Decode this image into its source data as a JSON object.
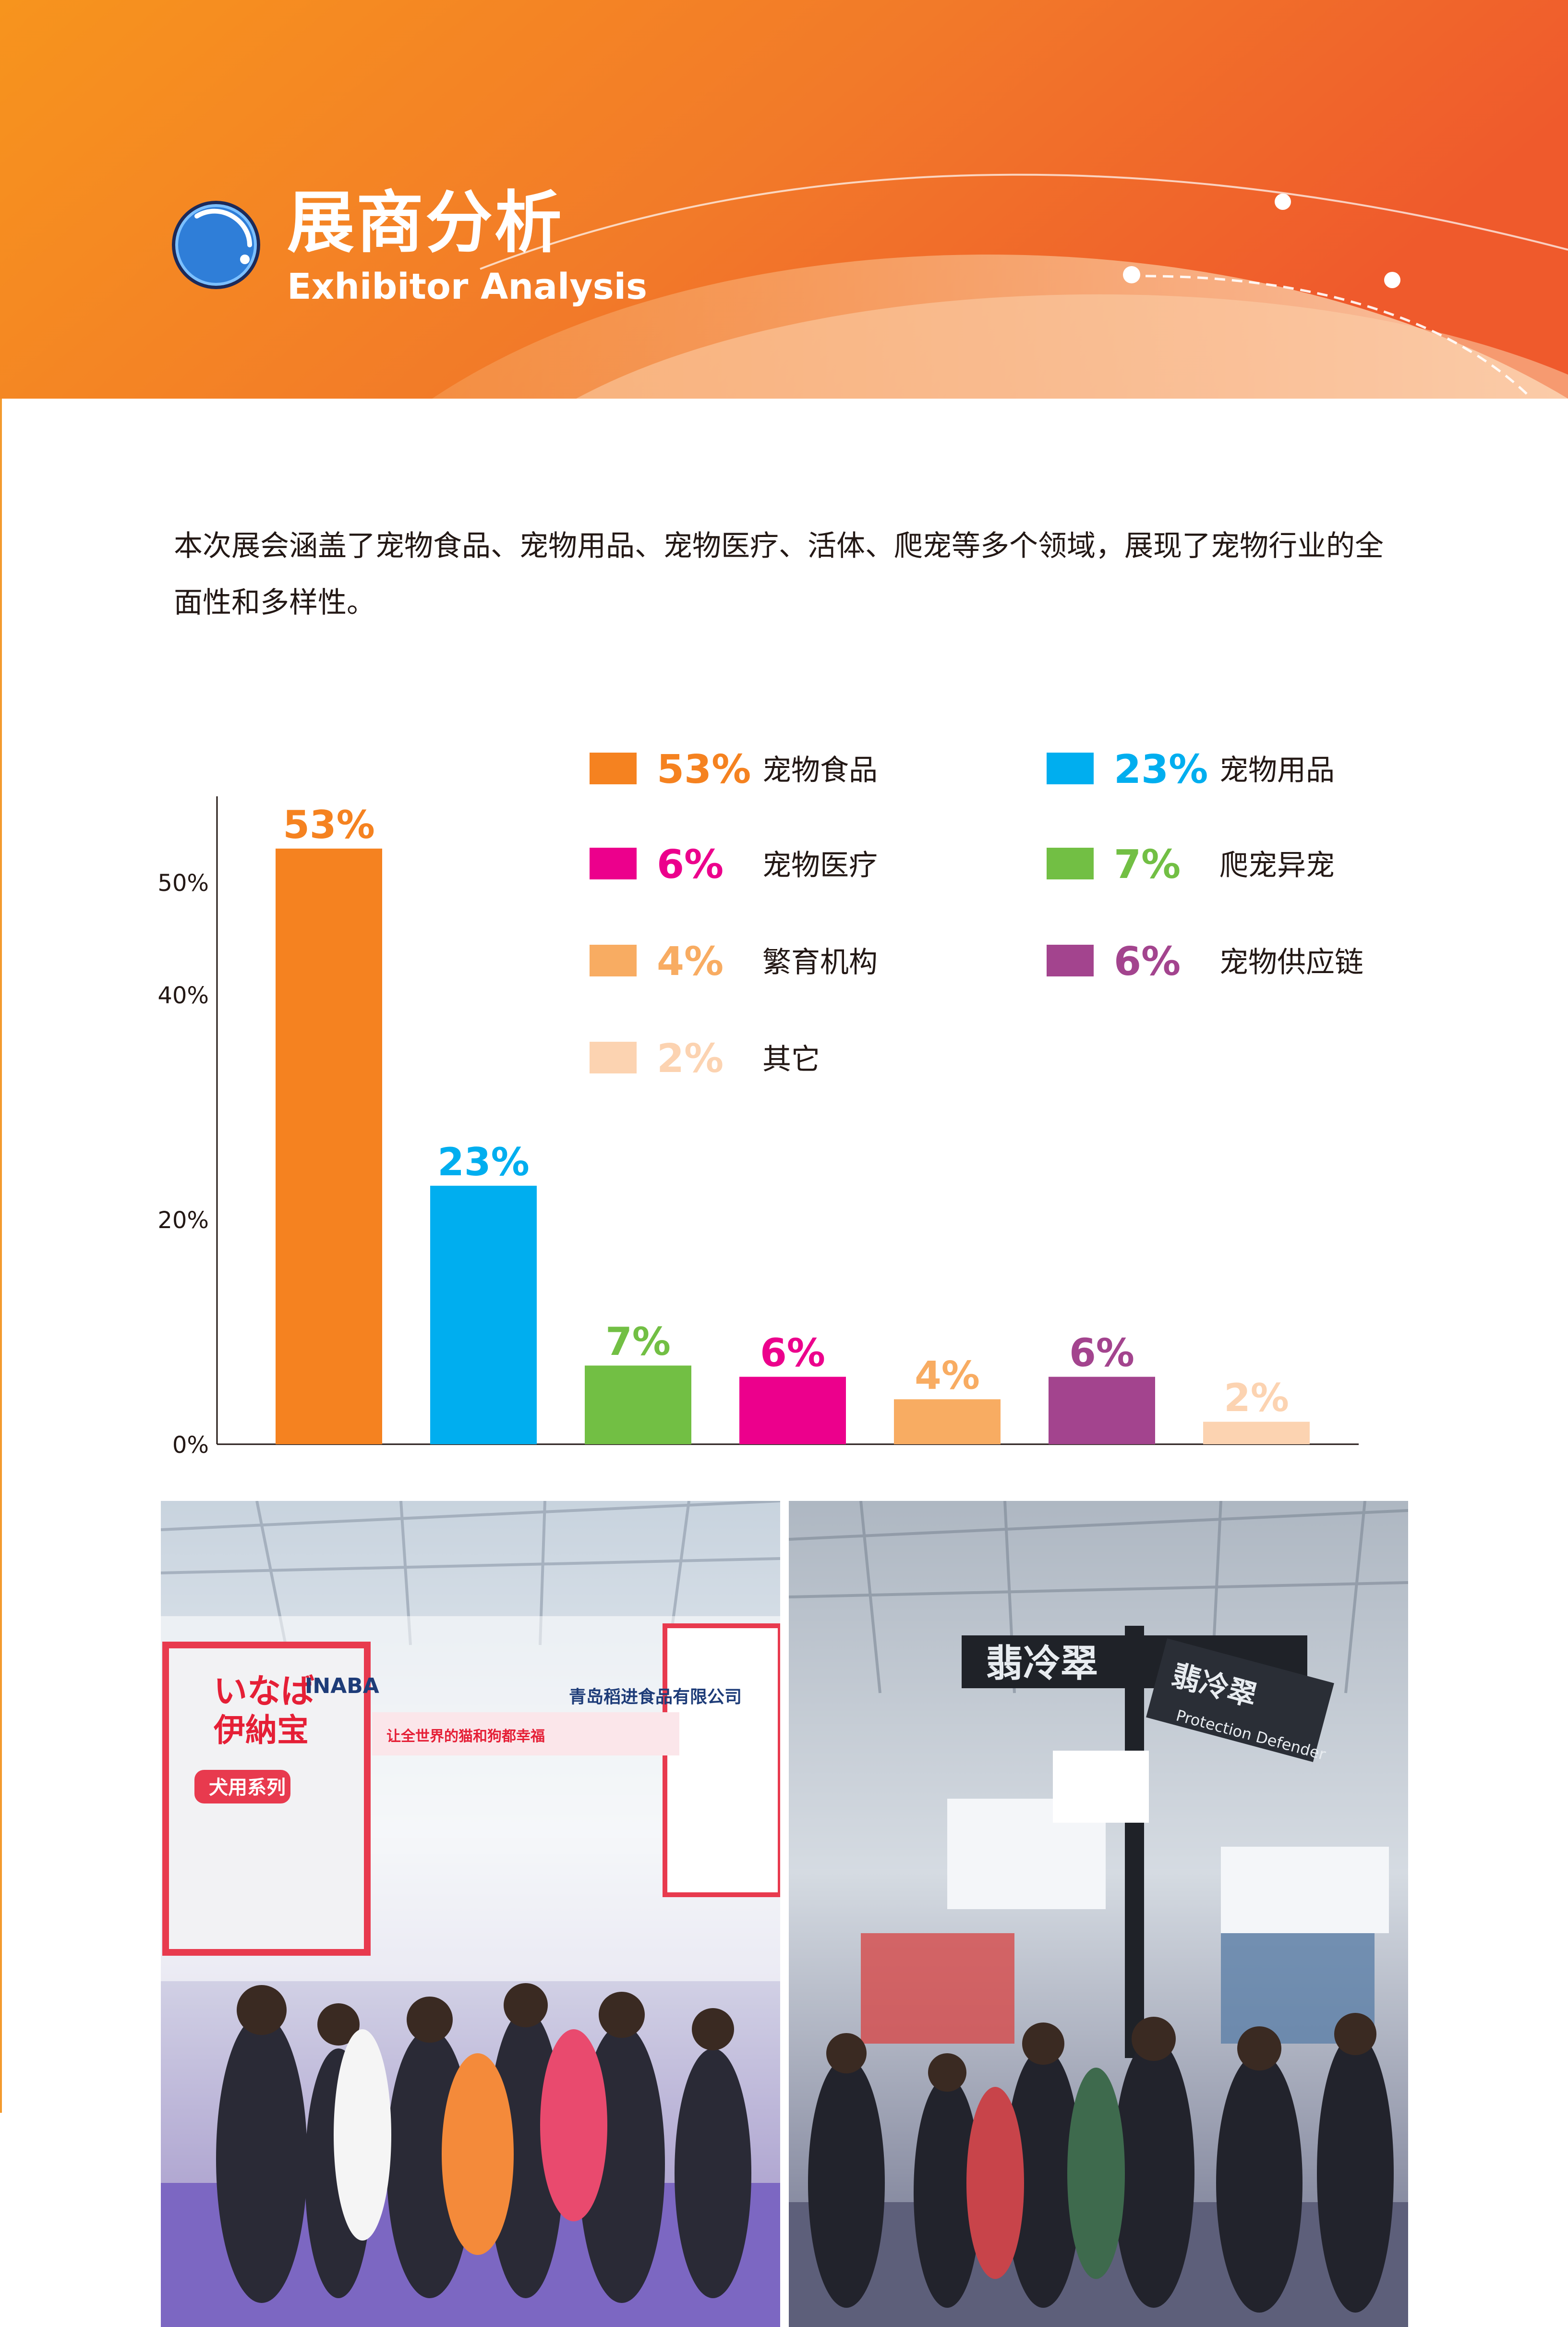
{
  "header": {
    "title_cn": "展商分析",
    "title_en": "Exhibitor Analysis"
  },
  "intro": {
    "text": "本次展会涵盖了宠物食品、宠物用品、宠物医疗、活体、爬宠等多个领域，展现了宠物行业的全面性和多样性。"
  },
  "colors": {
    "header_orange": "#f07d22",
    "header_red_orange": "#ef5a2c",
    "food": "#f58220",
    "supplies": "#00aeef",
    "medical": "#ec008c",
    "reptile": "#72bf44",
    "breeding": "#f8ac62",
    "supply_chain": "#a3448e",
    "other": "#fcd3b1"
  },
  "chart_data": {
    "type": "bar",
    "categories": [
      "宠物食品",
      "宠物用品",
      "爬宠异宠",
      "宠物医疗",
      "繁育机构",
      "宠物供应链",
      "其它"
    ],
    "values": [
      53,
      23,
      7,
      6,
      4,
      6,
      2
    ],
    "data_labels": [
      "53%",
      "23%",
      "7%",
      "6%",
      "4%",
      "6%",
      "2%"
    ],
    "bar_colors": [
      "#f58220",
      "#00aeef",
      "#72bf44",
      "#ec008c",
      "#f8ac62",
      "#a3448e",
      "#fcd3b1"
    ],
    "y_ticks": [
      {
        "value": 0,
        "label": "0%"
      },
      {
        "value": 20,
        "label": "20%"
      },
      {
        "value": 40,
        "label": "40%"
      },
      {
        "value": 50,
        "label": "50%"
      }
    ],
    "ylim": [
      0,
      60
    ],
    "legend": [
      {
        "pct": "53%",
        "label": "宠物食品",
        "color": "#f58220"
      },
      {
        "pct": "23%",
        "label": "宠物用品",
        "color": "#00aeef"
      },
      {
        "pct": "6%",
        "label": "宠物医疗",
        "color": "#ec008c"
      },
      {
        "pct": "7%",
        "label": "爬宠异宠",
        "color": "#72bf44"
      },
      {
        "pct": "4%",
        "label": "繁育机构",
        "color": "#f8ac62"
      },
      {
        "pct": "6%",
        "label": "宠物供应链",
        "color": "#a3448e"
      },
      {
        "pct": "2%",
        "label": "其它",
        "color": "#fcd3b1"
      }
    ],
    "legend_placement": "top-right",
    "grid": false
  },
  "photos": [
    {
      "icon": "exhibition-photo-icon",
      "signs": [
        "いなば",
        "伊納宝",
        "INABA",
        "让全世界的猫和狗都幸福",
        "青岛稻进食品有限公司",
        "犬用系列"
      ]
    },
    {
      "icon": "exhibition-photo-icon",
      "signs": [
        "翡冷翠",
        "翡冷翠",
        "Protection Defender"
      ]
    }
  ]
}
